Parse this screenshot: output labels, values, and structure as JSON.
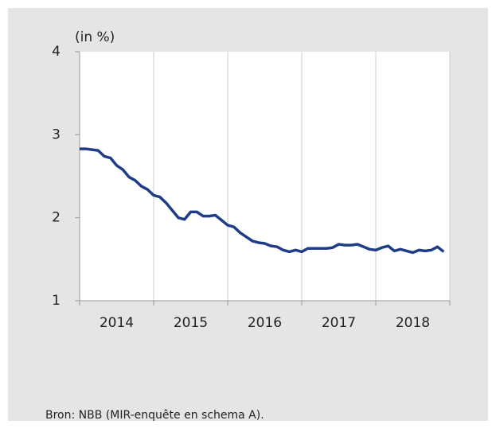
{
  "chart_data": {
    "type": "line",
    "y_unit_label": "(in %)",
    "source": "Bron: NBB (MIR-enquête en schema A).",
    "categories": [
      "2014",
      "2015",
      "2016",
      "2017",
      "2018"
    ],
    "x": [
      2014,
      2014.083,
      2014.167,
      2014.25,
      2014.333,
      2014.417,
      2014.5,
      2014.583,
      2014.667,
      2014.75,
      2014.833,
      2014.917,
      2015,
      2015.083,
      2015.167,
      2015.25,
      2015.333,
      2015.417,
      2015.5,
      2015.583,
      2015.667,
      2015.75,
      2015.833,
      2015.917,
      2016,
      2016.083,
      2016.167,
      2016.25,
      2016.333,
      2016.417,
      2016.5,
      2016.583,
      2016.667,
      2016.75,
      2016.833,
      2016.917,
      2017,
      2017.083,
      2017.167,
      2017.25,
      2017.333,
      2017.417,
      2017.5,
      2017.583,
      2017.667,
      2017.75,
      2017.833,
      2017.917,
      2018,
      2018.083,
      2018.167,
      2018.25,
      2018.333,
      2018.417,
      2018.5,
      2018.583,
      2018.667,
      2018.75,
      2018.833,
      2018.917
    ],
    "series": [
      {
        "color": "#1f3c88",
        "values": [
          2.83,
          2.83,
          2.82,
          2.81,
          2.74,
          2.72,
          2.63,
          2.58,
          2.49,
          2.45,
          2.38,
          2.34,
          2.27,
          2.25,
          2.18,
          2.09,
          2.0,
          1.98,
          2.07,
          2.07,
          2.02,
          2.02,
          2.03,
          1.97,
          1.91,
          1.89,
          1.82,
          1.77,
          1.72,
          1.7,
          1.69,
          1.66,
          1.65,
          1.61,
          1.59,
          1.61,
          1.59,
          1.63,
          1.63,
          1.63,
          1.63,
          1.64,
          1.68,
          1.67,
          1.67,
          1.68,
          1.65,
          1.62,
          1.61,
          1.64,
          1.66,
          1.6,
          1.62,
          1.6,
          1.58,
          1.61,
          1.6,
          1.61,
          1.65,
          1.59
        ]
      }
    ],
    "xlim": [
      2014,
      2019
    ],
    "xticks": [
      2014,
      2015,
      2016,
      2017,
      2018,
      2019
    ],
    "ylim": [
      1,
      4
    ],
    "yticks": [
      1,
      2,
      3,
      4
    ],
    "grid": true
  }
}
